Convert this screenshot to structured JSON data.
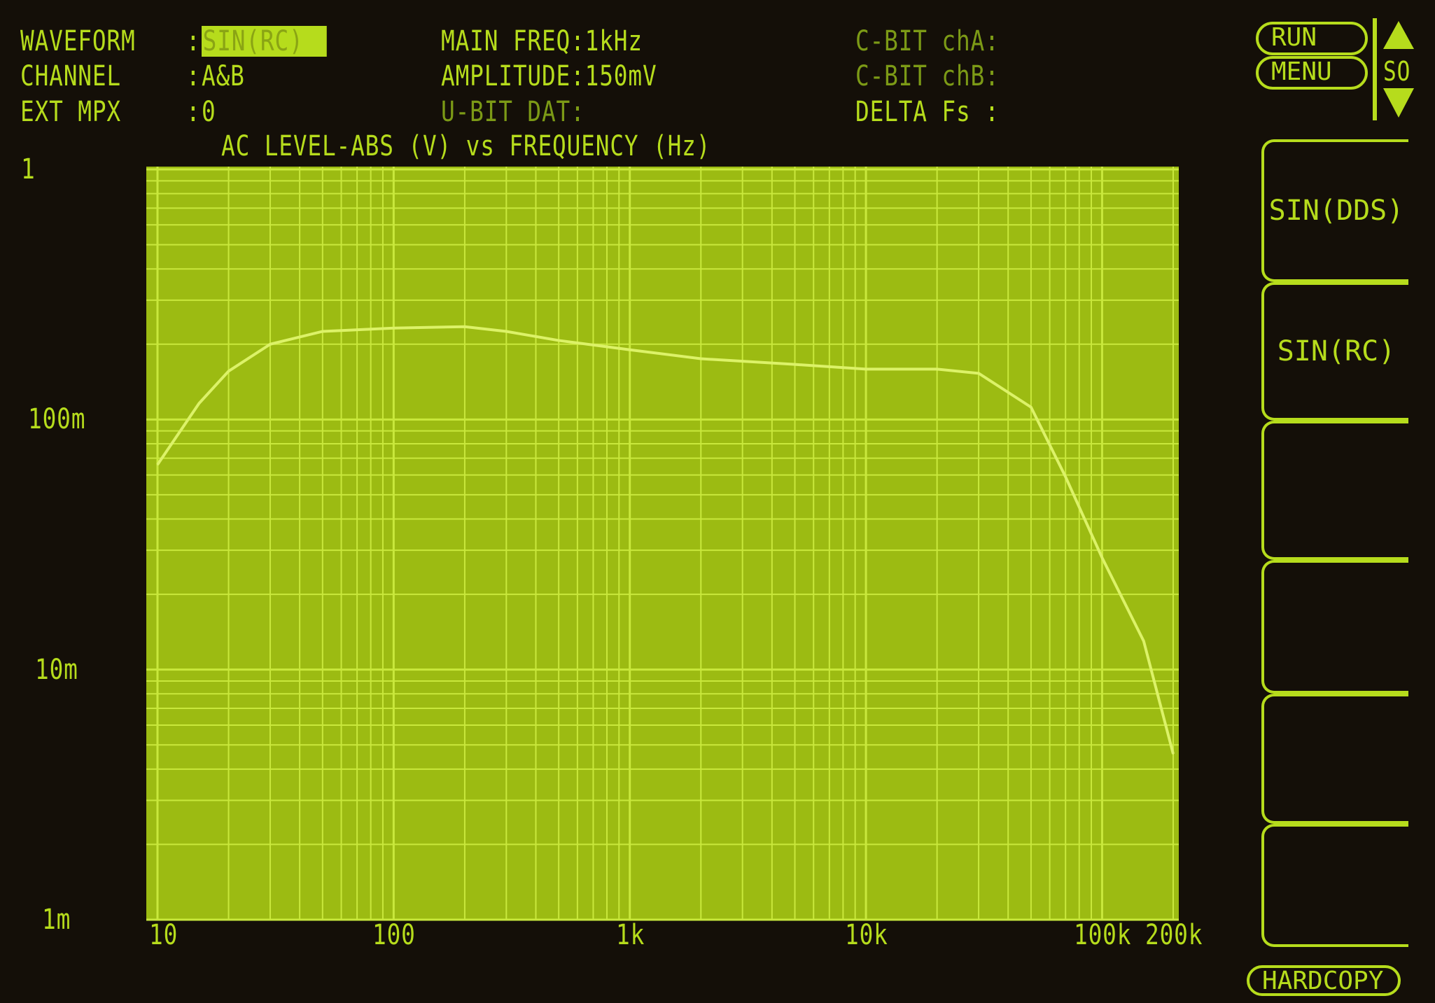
{
  "header": {
    "waveform_label": "WAVEFORM",
    "waveform_value": "SIN(RC)",
    "channel_label": "CHANNEL",
    "channel_value": "A&B",
    "ext_mpx_label": "EXT MPX",
    "ext_mpx_value": "0",
    "main_freq": "MAIN FREQ:1kHz",
    "amplitude": "AMPLITUDE:150mV",
    "u_bit_dat": "U-BIT DAT:",
    "c_bit_cha": "C-BIT chA:",
    "c_bit_chb": "C-BIT chB:",
    "delta_fs": "DELTA Fs :",
    "colon": ":"
  },
  "controls": {
    "run": "RUN",
    "menu": "MENU",
    "so": "SO",
    "hardcopy": "HARDCOPY",
    "softkeys": [
      "SIN(DDS)",
      "SIN(RC)",
      "",
      "",
      "",
      ""
    ]
  },
  "colors": {
    "phosphor": "#b6dc1c",
    "plot_fill": "#9cbb12",
    "grid": "#c9e83c",
    "trace": "#dcf268",
    "background": "#140f08"
  },
  "chart_data": {
    "type": "line",
    "title": "AC LEVEL-ABS (V) vs FREQUENCY (Hz)",
    "x_scale": "log",
    "y_scale": "log",
    "xlim": [
      10,
      200000
    ],
    "ylim": [
      0.001,
      1
    ],
    "grid": true,
    "x_ticks": [
      {
        "v": 10,
        "label": "10"
      },
      {
        "v": 100,
        "label": "100"
      },
      {
        "v": 1000,
        "label": "1k"
      },
      {
        "v": 10000,
        "label": "10k"
      },
      {
        "v": 100000,
        "label": "100k"
      },
      {
        "v": 200000,
        "label": "200k"
      }
    ],
    "y_ticks": [
      {
        "v": 1,
        "label": "1"
      },
      {
        "v": 0.1,
        "label": "100m"
      },
      {
        "v": 0.01,
        "label": "10m"
      },
      {
        "v": 0.001,
        "label": "1m"
      }
    ],
    "series": [
      {
        "x": [
          10,
          15,
          20,
          30,
          50,
          100,
          200,
          300,
          500,
          1000,
          2000,
          5000,
          10000,
          20000,
          30000,
          50000,
          70000,
          100000,
          150000,
          200000
        ],
        "y": [
          0.066,
          0.116,
          0.156,
          0.2,
          0.225,
          0.232,
          0.235,
          0.225,
          0.207,
          0.19,
          0.175,
          0.166,
          0.159,
          0.159,
          0.153,
          0.112,
          0.059,
          0.028,
          0.013,
          0.0046
        ]
      }
    ]
  }
}
